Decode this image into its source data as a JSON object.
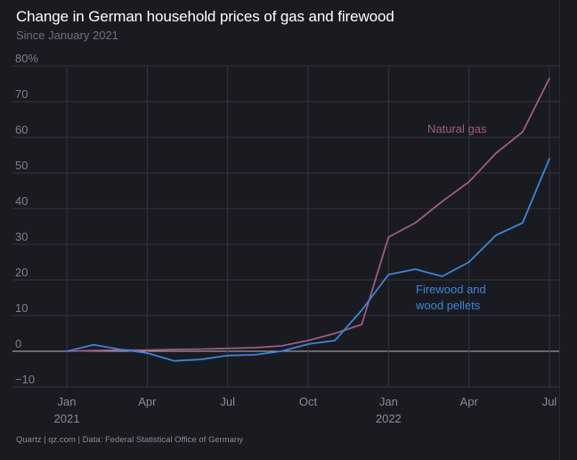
{
  "header": {
    "title": "Change in German household prices of gas and firewood",
    "subtitle": "Since January 2021"
  },
  "footer": {
    "source": "Quartz | qz.com | Data: Federal Statistical Office of Germany"
  },
  "chart_data": {
    "type": "line",
    "title": "Change in German household prices of gas and firewood",
    "subtitle": "Since January 2021",
    "xlabel": "",
    "ylabel": "",
    "ylim": [
      -10,
      80
    ],
    "y_ticks": [
      {
        "value": 80,
        "label": "80%"
      },
      {
        "value": 70,
        "label": "70"
      },
      {
        "value": 60,
        "label": "60"
      },
      {
        "value": 50,
        "label": "50"
      },
      {
        "value": 40,
        "label": "40"
      },
      {
        "value": 30,
        "label": "30"
      },
      {
        "value": 20,
        "label": "20"
      },
      {
        "value": 10,
        "label": "10"
      },
      {
        "value": 0,
        "label": "0"
      },
      {
        "value": -10,
        "label": "−10"
      }
    ],
    "x": [
      "2021-01",
      "2021-02",
      "2021-03",
      "2021-04",
      "2021-05",
      "2021-06",
      "2021-07",
      "2021-08",
      "2021-09",
      "2021-10",
      "2021-11",
      "2021-12",
      "2022-01",
      "2022-02",
      "2022-03",
      "2022-04",
      "2022-05",
      "2022-06",
      "2022-07"
    ],
    "x_ticks": [
      {
        "value": "2021-01",
        "label": "Jan",
        "year": "2021"
      },
      {
        "value": "2021-04",
        "label": "Apr",
        "year": ""
      },
      {
        "value": "2021-07",
        "label": "Jul",
        "year": ""
      },
      {
        "value": "2021-10",
        "label": "Oct",
        "year": ""
      },
      {
        "value": "2022-01",
        "label": "Jan",
        "year": "2022"
      },
      {
        "value": "2022-04",
        "label": "Apr",
        "year": ""
      },
      {
        "value": "2022-07",
        "label": "Jul",
        "year": ""
      }
    ],
    "grid": true,
    "series": [
      {
        "name": "Natural gas",
        "color": "#9e5b85",
        "values": [
          0,
          0.2,
          0.3,
          0.3,
          0.5,
          0.6,
          0.8,
          1.0,
          1.5,
          3.0,
          5.0,
          7.5,
          32,
          36,
          42,
          47.5,
          55.5,
          61.5,
          76.5
        ]
      },
      {
        "name": "Firewood and wood pellets",
        "color": "#3a86d8",
        "values": [
          0,
          1.8,
          0.5,
          -0.5,
          -2.7,
          -2.3,
          -1.2,
          -1.0,
          0,
          2.0,
          3.0,
          11.5,
          21.5,
          23.0,
          21.0,
          25.0,
          32.5,
          36.0,
          54.0
        ]
      }
    ]
  }
}
